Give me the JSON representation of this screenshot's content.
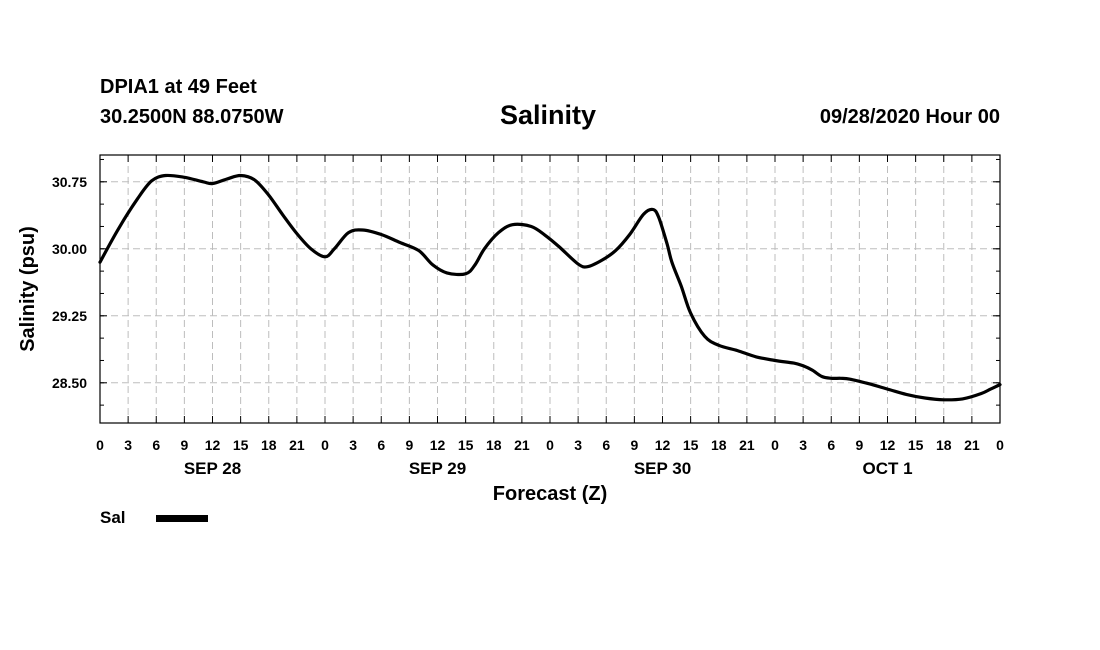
{
  "header": {
    "station": "DPIA1 at 49 Feet",
    "coords": "30.2500N 88.0750W",
    "title": "Salinity",
    "datetime": "09/28/2020 Hour 00"
  },
  "chart_data": {
    "type": "line",
    "title": "Salinity",
    "xlabel": "Forecast (Z)",
    "ylabel": "Salinity (psu)",
    "ylim": [
      28.05,
      31.05
    ],
    "y_ticks": [
      28.5,
      29.25,
      30.0,
      30.75
    ],
    "y_tick_labels": [
      "28.50",
      "29.25",
      "30.00",
      "30.75"
    ],
    "xlim": [
      0,
      96
    ],
    "x_tick_hours": [
      0,
      3,
      6,
      9,
      12,
      15,
      18,
      21,
      24,
      27,
      30,
      33,
      36,
      39,
      42,
      45,
      48,
      51,
      54,
      57,
      60,
      63,
      66,
      69,
      72,
      75,
      78,
      81,
      84,
      87,
      90,
      93,
      96
    ],
    "x_tick_labels": [
      "0",
      "3",
      "6",
      "9",
      "12",
      "15",
      "18",
      "21",
      "0",
      "3",
      "6",
      "9",
      "12",
      "15",
      "18",
      "21",
      "0",
      "3",
      "6",
      "9",
      "12",
      "15",
      "18",
      "21",
      "0",
      "3",
      "6",
      "9",
      "12",
      "15",
      "18",
      "21",
      "0"
    ],
    "day_labels": [
      {
        "label": "SEP 28",
        "hour": 12
      },
      {
        "label": "SEP 29",
        "hour": 36
      },
      {
        "label": "SEP 30",
        "hour": 60
      },
      {
        "label": "OCT 1",
        "hour": 84
      }
    ],
    "grid": true,
    "series": [
      {
        "name": "Sal",
        "color": "#000000",
        "x": [
          0,
          2,
          4,
          5.5,
          7,
          9,
          11,
          12,
          13.5,
          15,
          16.5,
          18,
          19.5,
          21,
          22.5,
          24,
          25,
          26.5,
          28,
          30,
          32,
          34,
          35.5,
          37,
          39,
          40,
          41,
          42.5,
          44,
          46,
          47.5,
          49,
          51,
          52,
          53.5,
          55,
          56.5,
          58,
          59,
          59.6,
          60.5,
          61,
          62,
          63,
          64.5,
          66,
          68,
          70,
          72,
          74,
          75,
          76,
          77,
          78,
          79,
          80,
          82,
          84,
          86,
          88,
          90,
          92,
          94,
          95,
          96
        ],
        "y": [
          29.85,
          30.23,
          30.56,
          30.76,
          30.82,
          30.8,
          30.75,
          30.73,
          30.78,
          30.82,
          30.77,
          30.6,
          30.38,
          30.17,
          30.0,
          29.91,
          30.0,
          30.18,
          30.21,
          30.16,
          30.07,
          29.98,
          29.82,
          29.73,
          29.72,
          29.82,
          30.0,
          30.18,
          30.27,
          30.25,
          30.15,
          30.02,
          29.83,
          29.8,
          29.87,
          29.98,
          30.16,
          30.39,
          30.44,
          30.35,
          30.05,
          29.85,
          29.58,
          29.28,
          29.02,
          28.92,
          28.86,
          28.79,
          28.75,
          28.72,
          28.69,
          28.64,
          28.57,
          28.55,
          28.55,
          28.54,
          28.49,
          28.43,
          28.37,
          28.33,
          28.31,
          28.32,
          28.38,
          28.43,
          28.48
        ]
      }
    ]
  },
  "legend": {
    "label": "Sal"
  }
}
